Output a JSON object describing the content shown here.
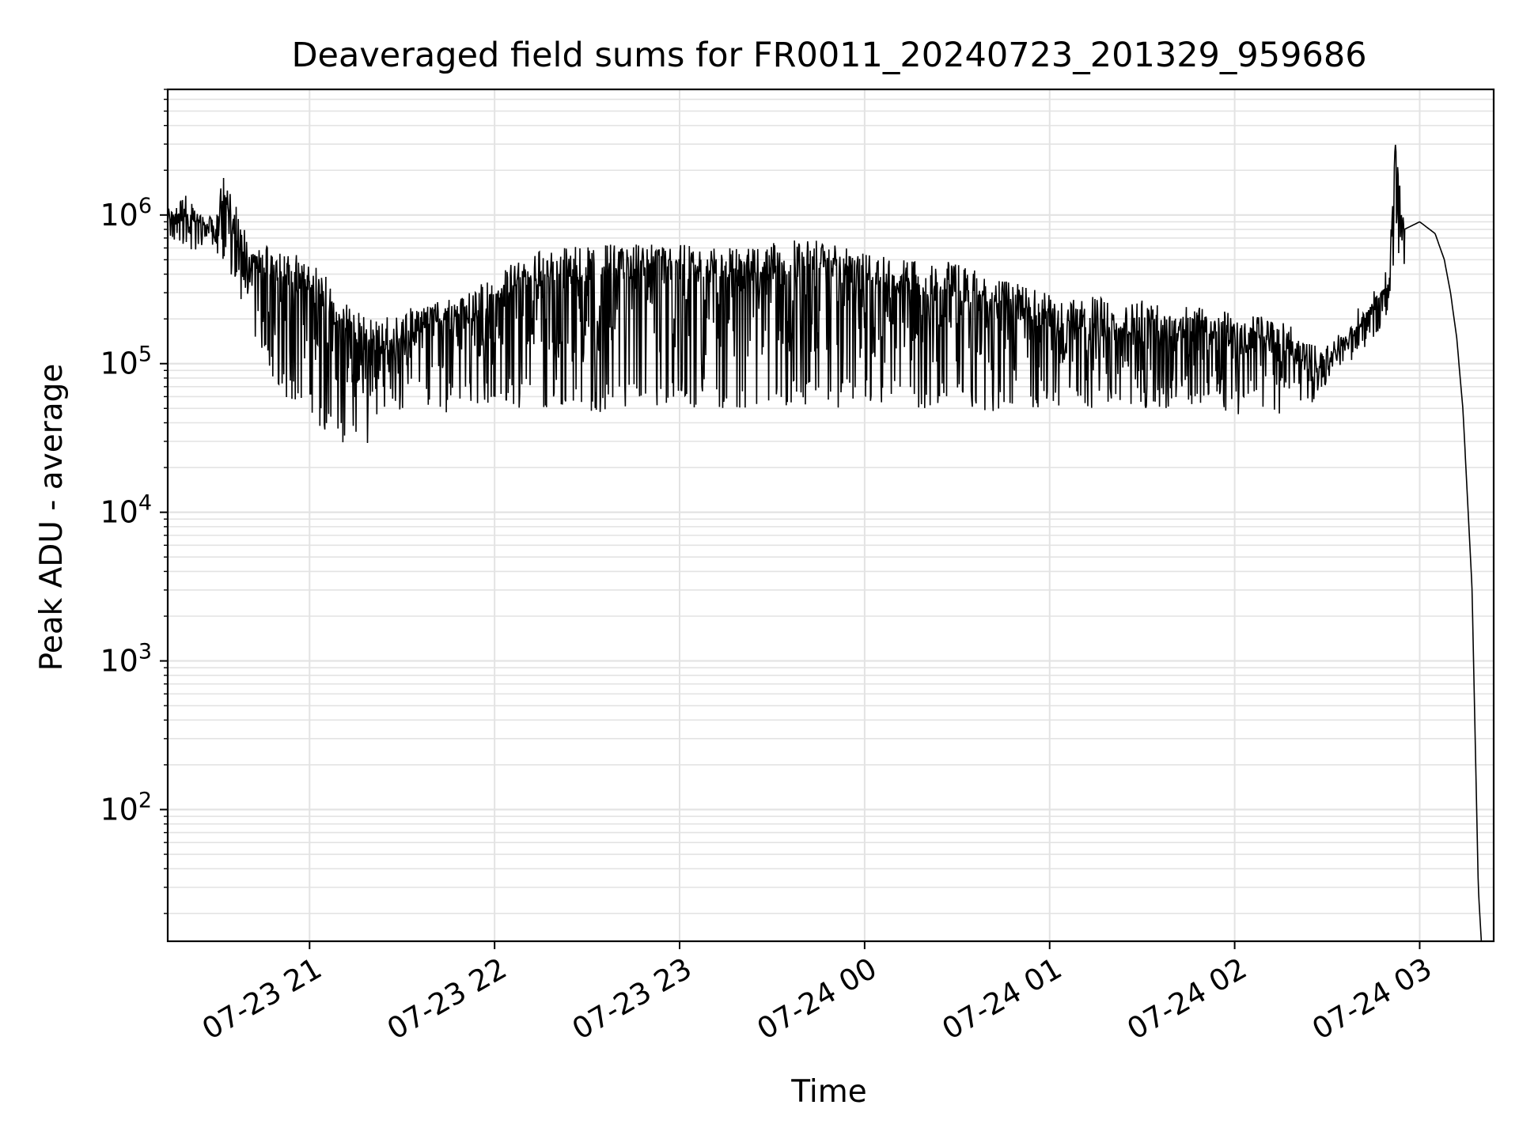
{
  "chart_data": {
    "type": "line",
    "title": "Deaveraged field sums for FR0011_20240723_201329_959686",
    "xlabel": "Time",
    "ylabel": "Peak ADU - average",
    "yscale": "log",
    "xlim": [
      "2024-07-23 20:14",
      "2024-07-24 03:24"
    ],
    "ylim": [
      13,
      7000000
    ],
    "grid": "major and minor",
    "line_color": "#000000",
    "x_ticks": [
      "07-23 21",
      "07-23 22",
      "07-23 23",
      "07-24 00",
      "07-24 01",
      "07-24 02",
      "07-24 03"
    ],
    "y_ticks": [
      {
        "base": "10",
        "exp": "2"
      },
      {
        "base": "10",
        "exp": "3"
      },
      {
        "base": "10",
        "exp": "4"
      },
      {
        "base": "10",
        "exp": "5"
      },
      {
        "base": "10",
        "exp": "6"
      }
    ],
    "series": [
      {
        "x": [
          "2024-07-23 20:14",
          "2024-07-23 20:20",
          "2024-07-23 20:25",
          "2024-07-23 20:30",
          "2024-07-23 20:32",
          "2024-07-23 20:35",
          "2024-07-23 20:40",
          "2024-07-23 20:45",
          "2024-07-23 20:50",
          "2024-07-23 20:55",
          "2024-07-23 21:00",
          "2024-07-23 21:05",
          "2024-07-23 21:10",
          "2024-07-23 21:15",
          "2024-07-23 21:20",
          "2024-07-23 21:25",
          "2024-07-23 21:30",
          "2024-07-23 21:40",
          "2024-07-23 21:50",
          "2024-07-23 22:00",
          "2024-07-23 22:10",
          "2024-07-23 22:20",
          "2024-07-23 22:30",
          "2024-07-23 22:45",
          "2024-07-23 23:00",
          "2024-07-23 23:15",
          "2024-07-23 23:30",
          "2024-07-23 23:45",
          "2024-07-24 00:00",
          "2024-07-24 00:15",
          "2024-07-24 00:30",
          "2024-07-24 00:40",
          "2024-07-24 00:50",
          "2024-07-24 01:00",
          "2024-07-24 01:15",
          "2024-07-24 01:30",
          "2024-07-24 01:45",
          "2024-07-24 02:00",
          "2024-07-24 02:15",
          "2024-07-24 02:25",
          "2024-07-24 02:30",
          "2024-07-24 02:40",
          "2024-07-24 02:50",
          "2024-07-24 02:52",
          "2024-07-24 02:55",
          "2024-07-24 03:00",
          "2024-07-24 03:05",
          "2024-07-24 03:08",
          "2024-07-24 03:10",
          "2024-07-24 03:12",
          "2024-07-24 03:14",
          "2024-07-24 03:15",
          "2024-07-24 03:17",
          "2024-07-24 03:18",
          "2024-07-24 03:19",
          "2024-07-24 03:20"
        ],
        "y": [
          1100000,
          1050000,
          1000000,
          1100000,
          2000000,
          1300000,
          750000,
          650000,
          600000,
          550000,
          500000,
          400000,
          280000,
          230000,
          200000,
          210000,
          230000,
          260000,
          300000,
          400000,
          550000,
          600000,
          620000,
          650000,
          650000,
          600000,
          650000,
          700000,
          550000,
          500000,
          480000,
          400000,
          350000,
          300000,
          280000,
          270000,
          250000,
          220000,
          200000,
          150000,
          140000,
          200000,
          350000,
          4000000,
          800000,
          900000,
          750000,
          500000,
          300000,
          150000,
          50000,
          20000,
          3000,
          300,
          30,
          13
        ],
        "min_y": [
          900000,
          850000,
          800000,
          500000,
          400000,
          300000,
          200000,
          100000,
          70000,
          50000,
          45000,
          35000,
          30000,
          25000,
          30000,
          35000,
          40000,
          45000,
          50000,
          50000,
          50000,
          50000,
          45000,
          50000,
          50000,
          50000,
          50000,
          50000,
          50000,
          50000,
          50000,
          45000,
          50000,
          50000,
          50000,
          50000,
          50000,
          45000,
          45000,
          50000,
          50000,
          150000,
          350000,
          350000,
          800000,
          900000,
          750000,
          500000,
          300000,
          150000,
          50000,
          20000,
          3000,
          300,
          30,
          13
        ]
      }
    ]
  }
}
